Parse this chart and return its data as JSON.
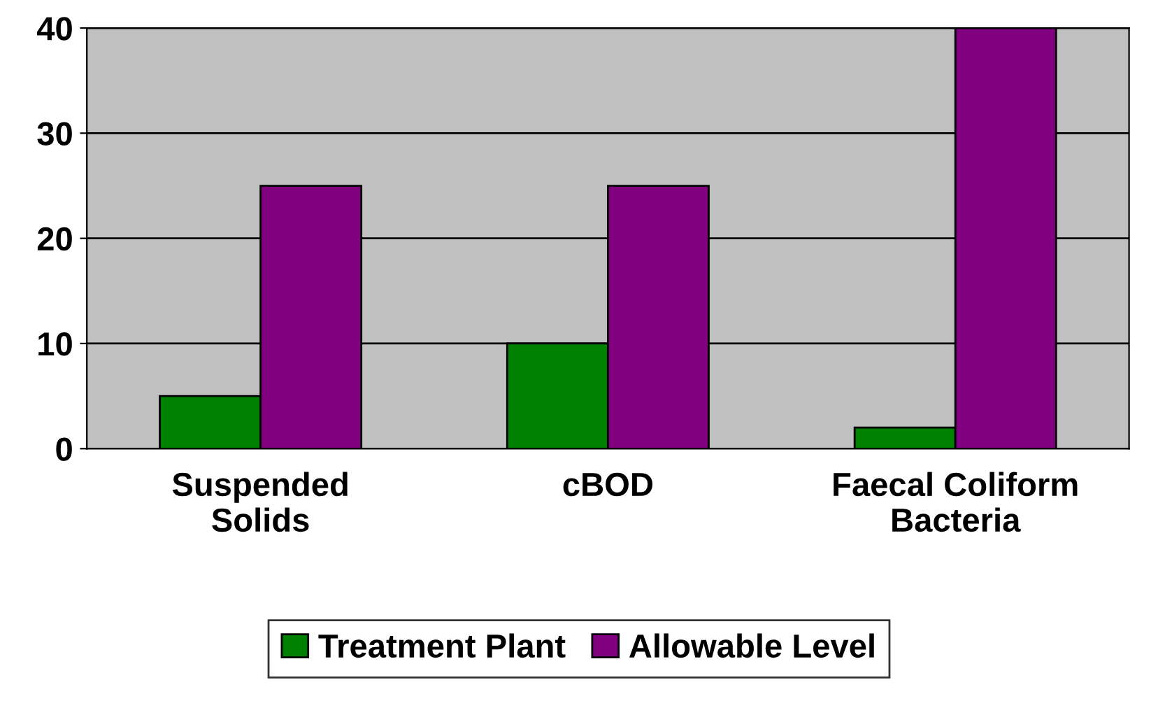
{
  "chart_data": {
    "type": "bar",
    "categories": [
      "Suspended\nSolids",
      "cBOD",
      "Faecal Coliform\nBacteria"
    ],
    "series": [
      {
        "name": "Treatment Plant",
        "color": "#008000",
        "values": [
          5,
          10,
          2
        ]
      },
      {
        "name": "Allowable Level",
        "color": "#800080",
        "values": [
          25,
          25,
          40
        ]
      }
    ],
    "ylim": [
      0,
      40
    ],
    "yticks": [
      0,
      10,
      20,
      30,
      40
    ],
    "grid": "y",
    "legend": "bottom"
  }
}
